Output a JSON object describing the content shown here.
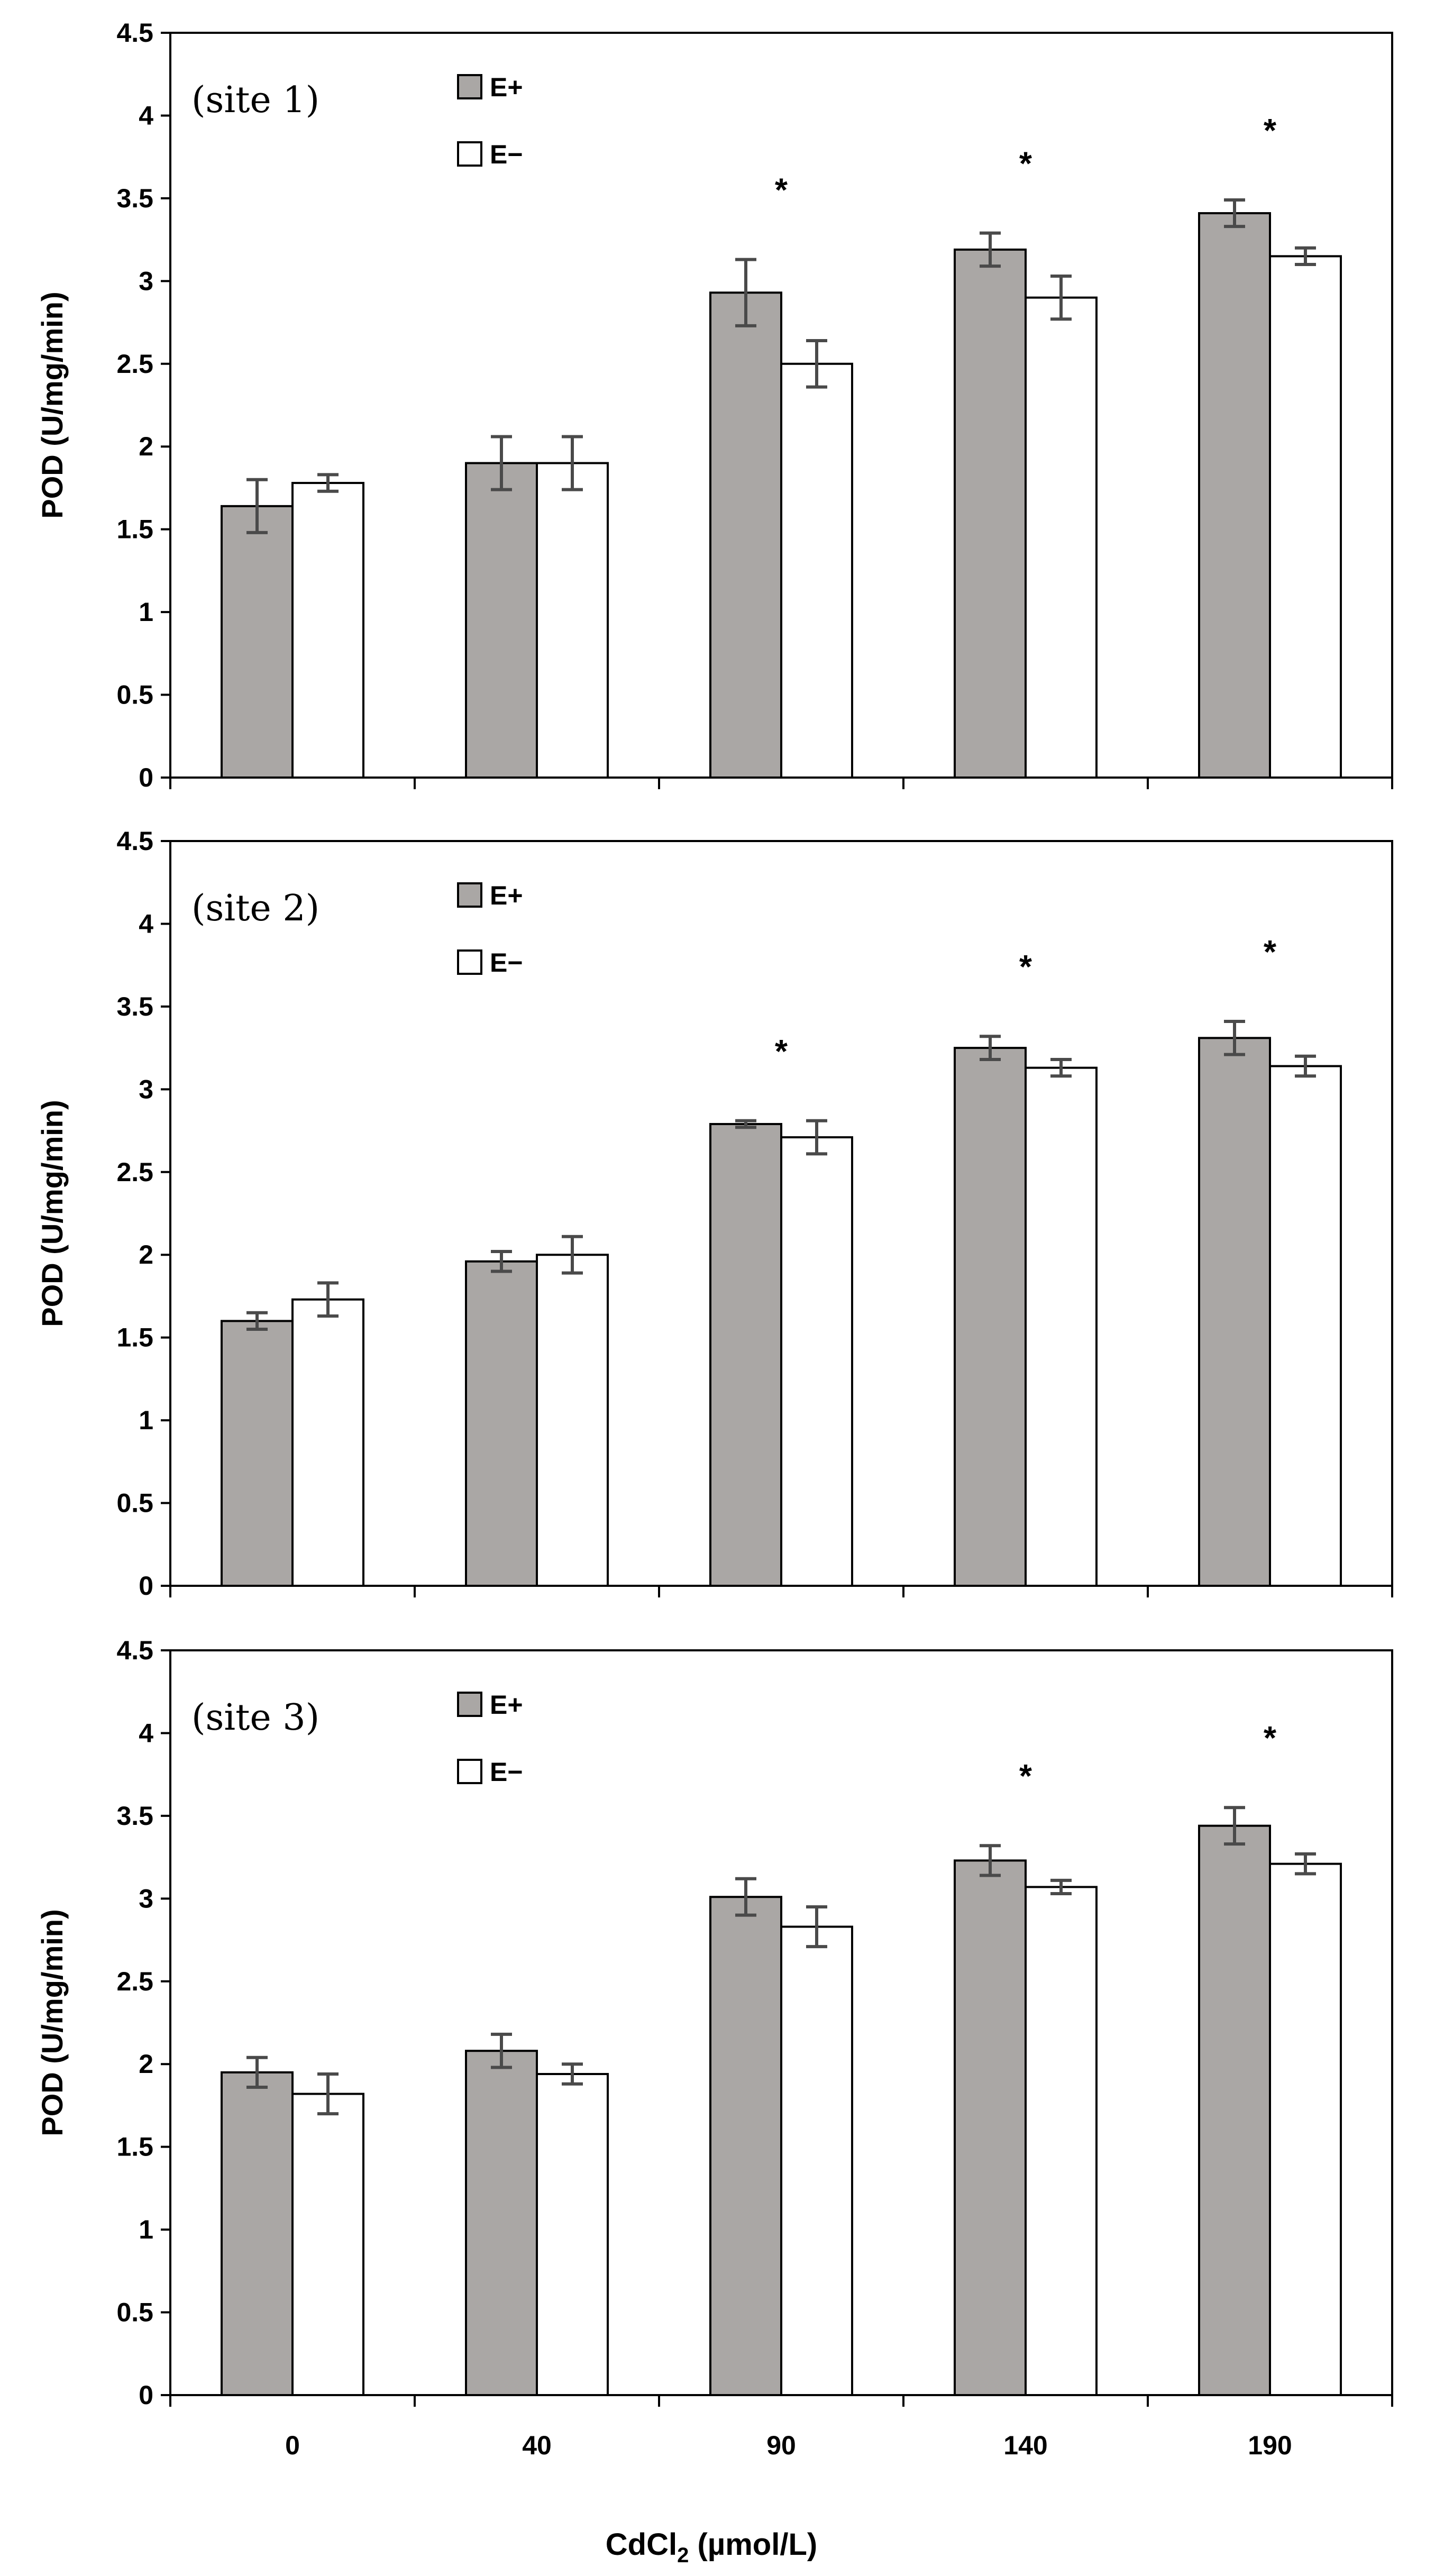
{
  "chart_data": [
    {
      "type": "bar",
      "panel_label": "(site 1)",
      "categories": [
        "0",
        "40",
        "90",
        "140",
        "190"
      ],
      "series": [
        {
          "name": "E+",
          "color": "#aaa7a5",
          "values": [
            1.64,
            1.9,
            2.93,
            3.19,
            3.41
          ],
          "errors": [
            0.16,
            0.16,
            0.2,
            0.1,
            0.08
          ]
        },
        {
          "name": "E−",
          "color": "#ffffff",
          "values": [
            1.78,
            1.9,
            2.5,
            2.9,
            3.15
          ],
          "errors": [
            0.05,
            0.16,
            0.14,
            0.13,
            0.05
          ]
        }
      ],
      "significance": [
        "",
        "",
        "*",
        "*",
        "*"
      ],
      "title": "",
      "xlabel": "",
      "ylabel": "POD (U/mg/min)",
      "ylim": [
        0,
        4.5
      ],
      "yticks": [
        "0",
        "0.5",
        "1",
        "1.5",
        "2",
        "2.5",
        "3",
        "3.5",
        "4",
        "4.5"
      ],
      "legend_position": "top-left"
    },
    {
      "type": "bar",
      "panel_label": "(site 2)",
      "categories": [
        "0",
        "40",
        "90",
        "140",
        "190"
      ],
      "series": [
        {
          "name": "E+",
          "color": "#aaa7a5",
          "values": [
            1.6,
            1.96,
            2.79,
            3.25,
            3.31
          ],
          "errors": [
            0.05,
            0.06,
            0.02,
            0.07,
            0.1
          ]
        },
        {
          "name": "E−",
          "color": "#ffffff",
          "values": [
            1.73,
            2.0,
            2.71,
            3.13,
            3.14
          ],
          "errors": [
            0.1,
            0.11,
            0.1,
            0.05,
            0.06
          ]
        }
      ],
      "significance": [
        "",
        "",
        "*",
        "*",
        "*"
      ],
      "title": "",
      "xlabel": "",
      "ylabel": "POD (U/mg/min)",
      "ylim": [
        0,
        4.5
      ],
      "yticks": [
        "0",
        "0.5",
        "1",
        "1.5",
        "2",
        "2.5",
        "3",
        "3.5",
        "4",
        "4.5"
      ],
      "legend_position": "top-left"
    },
    {
      "type": "bar",
      "panel_label": "(site 3)",
      "categories": [
        "0",
        "40",
        "90",
        "140",
        "190"
      ],
      "series": [
        {
          "name": "E+",
          "color": "#aaa7a5",
          "values": [
            1.95,
            2.08,
            3.01,
            3.23,
            3.44
          ],
          "errors": [
            0.09,
            0.1,
            0.11,
            0.09,
            0.11
          ]
        },
        {
          "name": "E−",
          "color": "#ffffff",
          "values": [
            1.82,
            1.94,
            2.83,
            3.07,
            3.21
          ],
          "errors": [
            0.12,
            0.06,
            0.12,
            0.04,
            0.06
          ]
        }
      ],
      "significance": [
        "",
        "",
        "",
        "*",
        "*"
      ],
      "title": "",
      "xlabel": "CdCl2 (µmol/L)",
      "ylabel": "POD (U/mg/min)",
      "ylim": [
        0,
        4.5
      ],
      "yticks": [
        "0",
        "0.5",
        "1",
        "1.5",
        "2",
        "2.5",
        "3",
        "3.5",
        "4",
        "4.5"
      ],
      "legend_position": "top-left"
    }
  ],
  "xlabel_main": "CdCl",
  "xlabel_subscript": "2",
  "xlabel_unit": " (µmol/L)"
}
